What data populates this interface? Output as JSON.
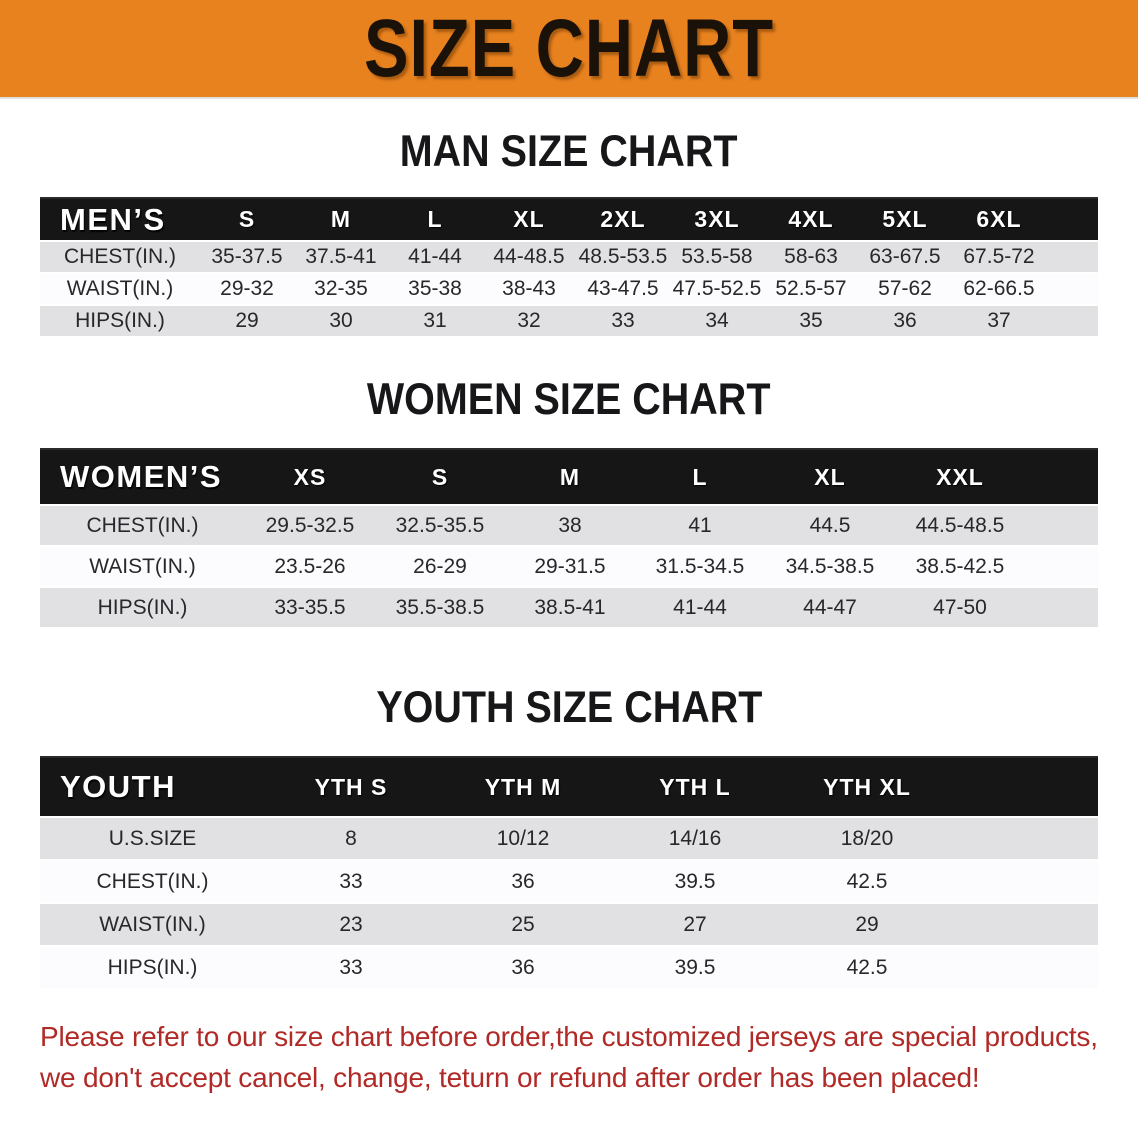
{
  "banner": {
    "title": "SIZE CHART"
  },
  "colors": {
    "banner_orange": "#e8821f",
    "table_header_black": "#161616",
    "row_stripe_gray": "#e1e1e3",
    "notice_red": "#b02a27"
  },
  "sections": [
    {
      "heading": "MAN SIZE CHART",
      "table": {
        "header": [
          "MEN’S",
          "S",
          "M",
          "L",
          "XL",
          "2XL",
          "3XL",
          "4XL",
          "5XL",
          "6XL"
        ],
        "rows": [
          [
            "CHEST(IN.)",
            "35-37.5",
            "37.5-41",
            "41-44",
            "44-48.5",
            "48.5-53.5",
            "53.5-58",
            "58-63",
            "63-67.5",
            "67.5-72"
          ],
          [
            "WAIST(IN.)",
            "29-32",
            "32-35",
            "35-38",
            "38-43",
            "43-47.5",
            "47.5-52.5",
            "52.5-57",
            "57-62",
            "62-66.5"
          ],
          [
            "HIPS(IN.)",
            "29",
            "30",
            "31",
            "32",
            "33",
            "34",
            "35",
            "36",
            "37"
          ]
        ]
      }
    },
    {
      "heading": "WOMEN SIZE CHART",
      "table": {
        "header": [
          "WOMEN’S",
          "XS",
          "S",
          "M",
          "L",
          "XL",
          "XXL"
        ],
        "rows": [
          [
            "CHEST(IN.)",
            "29.5-32.5",
            "32.5-35.5",
            "38",
            "41",
            "44.5",
            "44.5-48.5"
          ],
          [
            "WAIST(IN.)",
            "23.5-26",
            "26-29",
            "29-31.5",
            "31.5-34.5",
            "34.5-38.5",
            "38.5-42.5"
          ],
          [
            "HIPS(IN.)",
            "33-35.5",
            "35.5-38.5",
            "38.5-41",
            "41-44",
            "44-47",
            "47-50"
          ]
        ]
      }
    },
    {
      "heading": "YOUTH SIZE CHART",
      "table": {
        "header": [
          "YOUTH",
          "YTH S",
          "YTH M",
          "YTH L",
          "YTH XL"
        ],
        "rows": [
          [
            "U.S.SIZE",
            "8",
            "10/12",
            "14/16",
            "18/20"
          ],
          [
            "CHEST(IN.)",
            "33",
            "36",
            "39.5",
            "42.5"
          ],
          [
            "WAIST(IN.)",
            "23",
            "25",
            "27",
            "29"
          ],
          [
            "HIPS(IN.)",
            "33",
            "36",
            "39.5",
            "42.5"
          ]
        ]
      }
    }
  ],
  "notice": {
    "line1": "Please refer to our size chart before order,the customized jerseys are special products,",
    "line2": "we don't accept cancel, change, teturn or refund after order has been placed!"
  }
}
